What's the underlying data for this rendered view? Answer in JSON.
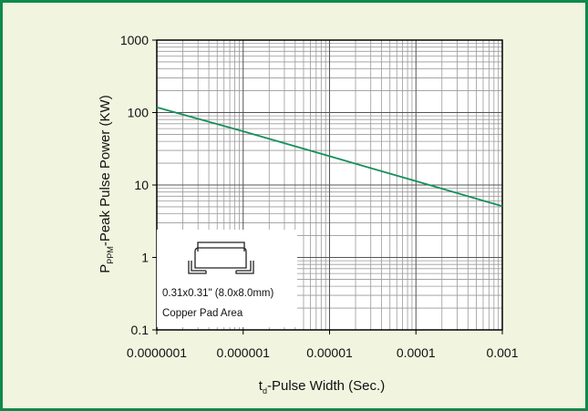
{
  "chart_data": {
    "type": "line",
    "title": "",
    "x_axis": {
      "label_main": "t",
      "label_sub": "d",
      "label_rest": "-Pulse Width (Sec.)",
      "scale": "log",
      "range": [
        1e-07,
        0.001
      ],
      "tick_labels": [
        "0.0000001",
        "0.000001",
        "0.00001",
        "0.0001",
        "0.001"
      ]
    },
    "y_axis": {
      "label_main": "P",
      "label_sub": "PPM",
      "label_rest": "-Peak Pulse Power (KW)",
      "scale": "log",
      "range": [
        0.1,
        1000
      ],
      "tick_labels": [
        "0.1",
        "1",
        "10",
        "100",
        "1000"
      ]
    },
    "grid": true,
    "series": [
      {
        "x": [
          1e-07,
          1e-06,
          1e-05,
          0.0001,
          0.001
        ],
        "y": [
          118,
          55,
          25,
          11.3,
          5.1
        ]
      }
    ],
    "colors": {
      "frame": "#0e8a4a",
      "background": "#f1f4df",
      "line": "#14905a",
      "grid": "#9a9a9a",
      "axis": "#000000"
    },
    "inset": {
      "line1": "0.31x0.31\" (8.0x8.0mm)",
      "line2": "Copper Pad Area",
      "icon": "smd-package-icon"
    }
  }
}
